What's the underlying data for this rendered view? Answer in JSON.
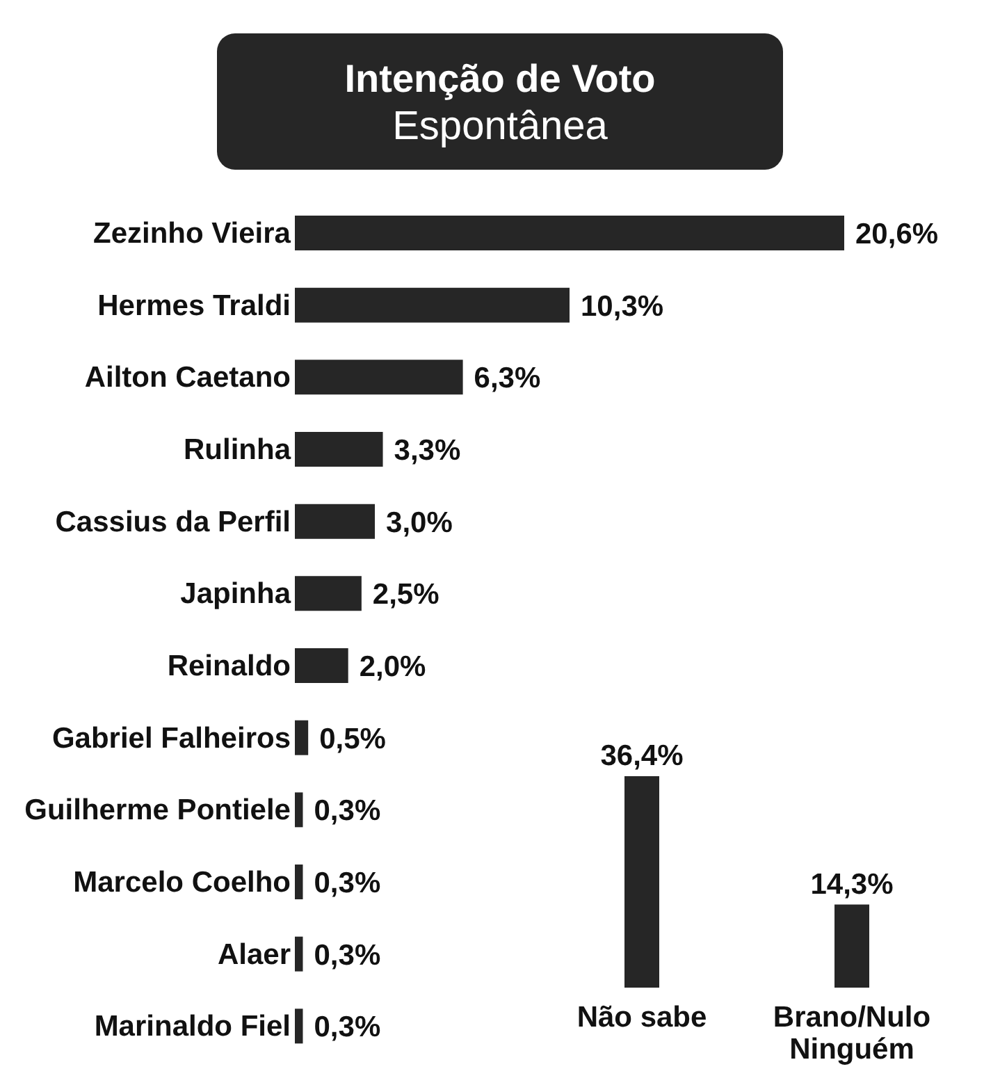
{
  "chart_data": [
    {
      "type": "bar",
      "title": "Intenção de Voto",
      "subtitle": "Espontânea",
      "orientation": "horizontal",
      "categories": [
        "Zezinho Vieira",
        "Hermes Traldi",
        "Ailton Caetano",
        "Rulinha",
        "Cassius da Perfil",
        "Japinha",
        "Reinaldo",
        "Gabriel Falheiros",
        "Guilherme Pontiele",
        "Marcelo Coelho",
        "Alaer",
        "Marinaldo Fiel"
      ],
      "values": [
        20.6,
        10.3,
        6.3,
        3.3,
        3.0,
        2.5,
        2.0,
        0.5,
        0.3,
        0.3,
        0.3,
        0.3
      ],
      "value_labels": [
        "20,6%",
        "10,3%",
        "6,3%",
        "3,3%",
        "3,0%",
        "2,5%",
        "2,0%",
        "0,5%",
        "0,3%",
        "0,3%",
        "0,3%",
        "0,3%"
      ],
      "color": "#262626",
      "tick_labels": "y"
    },
    {
      "type": "bar",
      "categories": [
        "Não sabe",
        "Brano/Nulo Ninguém"
      ],
      "values": [
        36.4,
        14.3
      ],
      "value_labels": [
        "36,4%",
        "14,3%"
      ],
      "color": "#262626",
      "tick_labels": "x"
    }
  ]
}
